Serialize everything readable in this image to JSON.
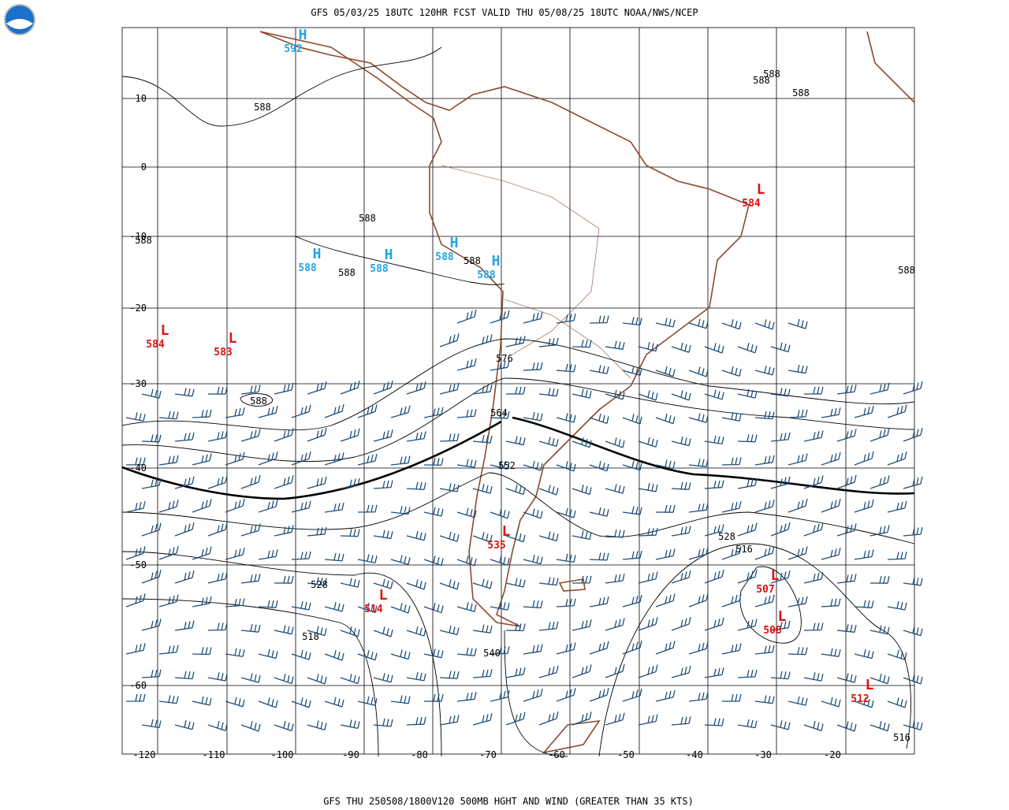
{
  "header": {
    "title": "GFS 05/03/25 18UTC 120HR FCST VALID THU 05/08/25 18UTC NOAA/NWS/NCEP"
  },
  "footer": {
    "caption": "GFS THU 250508/1800V120 500MB HGHT AND WIND (GREATER THAN 35 KTS)"
  },
  "latitude_labels": [
    "10",
    "0",
    "-10",
    "-20",
    "-30",
    "-40",
    "-50",
    "-60"
  ],
  "longitude_labels": [
    "-120",
    "-110",
    "-100",
    "-90",
    "-80",
    "-70",
    "-60",
    "-50",
    "-40",
    "-30",
    "-20"
  ],
  "systems": [
    {
      "symbol": "H",
      "value": "592"
    },
    {
      "symbol": "L",
      "value": "584"
    },
    {
      "symbol": "H",
      "value": "588"
    },
    {
      "symbol": "H",
      "value": "588"
    },
    {
      "symbol": "H",
      "value": "588"
    },
    {
      "symbol": "H",
      "value": "588"
    },
    {
      "symbol": "L",
      "value": "584"
    },
    {
      "symbol": "L",
      "value": "583"
    },
    {
      "symbol": "L",
      "value": "535"
    },
    {
      "symbol": "L",
      "value": "507"
    },
    {
      "symbol": "L",
      "value": "508"
    },
    {
      "symbol": "L",
      "value": "514"
    },
    {
      "symbol": "L",
      "value": "512"
    }
  ],
  "contour_labels": [
    "588",
    "588",
    "588",
    "588",
    "588",
    "588",
    "588",
    "588",
    "588",
    "588",
    "576",
    "564",
    "552",
    "528",
    "516",
    "528",
    "518",
    "540",
    "516"
  ]
}
